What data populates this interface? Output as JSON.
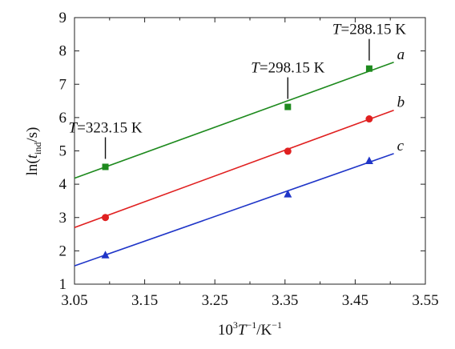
{
  "chart_data": {
    "type": "scatter",
    "title": "",
    "xlabel": {
      "base": "10",
      "exp1": "3",
      "var": "T",
      "exp2": "−1",
      "rest": "/K",
      "exp3": "−1"
    },
    "ylabel": {
      "prefix": "ln(",
      "var": "t",
      "sub": "ind",
      "suffix": "/s)"
    },
    "xlim": [
      3.05,
      3.55
    ],
    "ylim": [
      1,
      9
    ],
    "xticks": [
      "3.05",
      "3.15",
      "3.25",
      "3.35",
      "3.45",
      "3.55"
    ],
    "yticks": [
      "1",
      "2",
      "3",
      "4",
      "5",
      "6",
      "7",
      "8",
      "9"
    ],
    "grid": false,
    "series": [
      {
        "name": "a",
        "color": "#1e8a1e",
        "marker": "square",
        "x": [
          3.094,
          3.354,
          3.47
        ],
        "y": [
          4.52,
          6.32,
          7.47
        ],
        "fit": {
          "x": [
            3.05,
            3.505
          ],
          "y": [
            4.18,
            7.66
          ]
        }
      },
      {
        "name": "b",
        "color": "#e02020",
        "marker": "circle",
        "x": [
          3.094,
          3.354,
          3.47
        ],
        "y": [
          3.0,
          4.99,
          5.96
        ],
        "fit": {
          "x": [
            3.05,
            3.505
          ],
          "y": [
            2.7,
            6.22
          ]
        }
      },
      {
        "name": "c",
        "color": "#1f35c8",
        "marker": "triangle",
        "x": [
          3.094,
          3.354,
          3.47
        ],
        "y": [
          1.87,
          3.7,
          4.7
        ],
        "fit": {
          "x": [
            3.05,
            3.505
          ],
          "y": [
            1.55,
            4.92
          ]
        }
      }
    ],
    "annotations": [
      {
        "var": "T",
        "text": "=323.15 K",
        "x": 3.094,
        "y_point": 4.52
      },
      {
        "var": "T",
        "text": "=298.15 K",
        "x": 3.354,
        "y_point": 6.32
      },
      {
        "var": "T",
        "text": "=288.15 K",
        "x": 3.47,
        "y_point": 7.47
      }
    ]
  }
}
